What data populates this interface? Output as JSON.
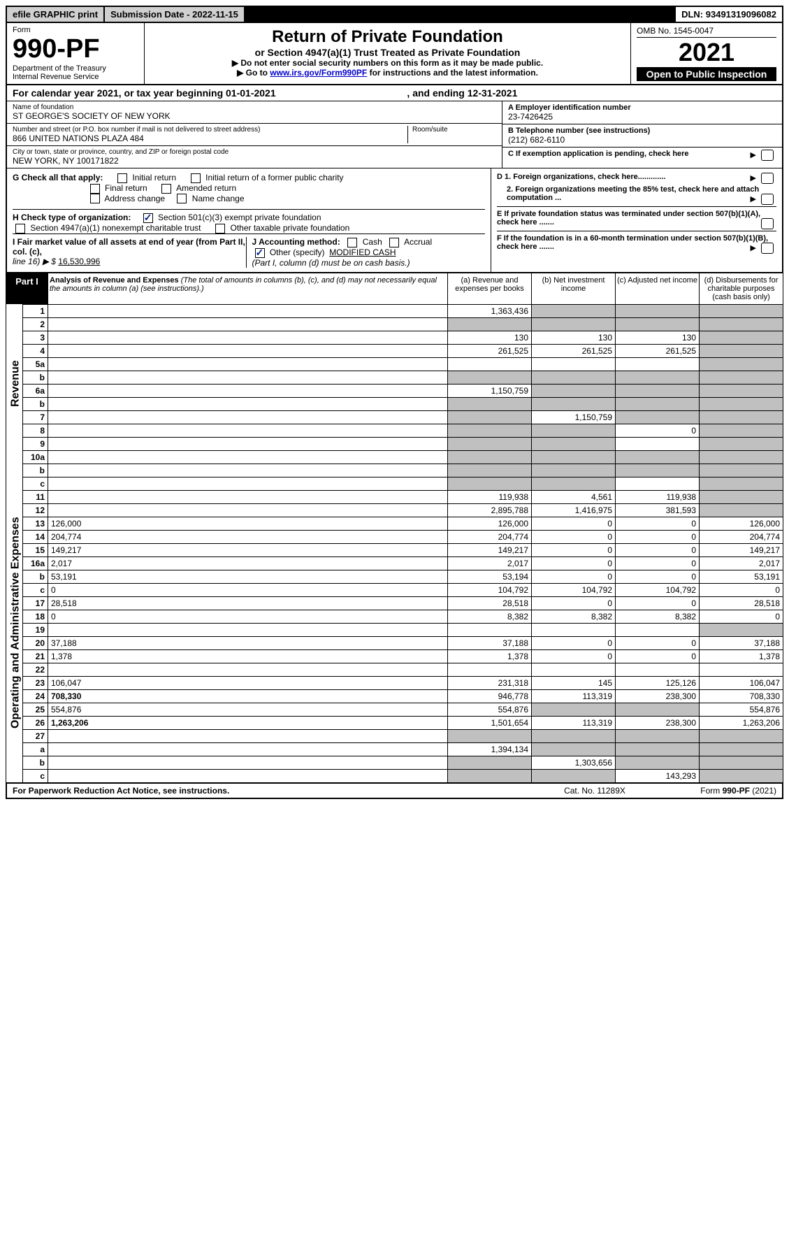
{
  "topbar": {
    "efile": "efile GRAPHIC print",
    "subdate_label": "Submission Date - ",
    "subdate_val": "2022-11-15",
    "dln_label": "DLN: ",
    "dln_val": "93491319096082"
  },
  "header": {
    "form_label": "Form",
    "form_no": "990-PF",
    "dept": "Department of the Treasury",
    "irs": "Internal Revenue Service",
    "title": "Return of Private Foundation",
    "subtitle": "or Section 4947(a)(1) Trust Treated as Private Foundation",
    "instr1": "▶ Do not enter social security numbers on this form as it may be made public.",
    "instr2_prefix": "▶ Go to ",
    "instr2_link": "www.irs.gov/Form990PF",
    "instr2_suffix": " for instructions and the latest information.",
    "omb": "OMB No. 1545-0047",
    "year": "2021",
    "open": "Open to Public Inspection"
  },
  "caly": {
    "prefix": "For calendar year 2021, or tax year beginning ",
    "begin": "01-01-2021",
    "mid": " , and ending ",
    "end": "12-31-2021"
  },
  "entity": {
    "name_label": "Name of foundation",
    "name": "ST GEORGE'S SOCIETY OF NEW YORK",
    "addr_label": "Number and street (or P.O. box number if mail is not delivered to street address)",
    "addr": "866 UNITED NATIONS PLAZA 484",
    "room_label": "Room/suite",
    "city_label": "City or town, state or province, country, and ZIP or foreign postal code",
    "city": "NEW YORK, NY  100171822",
    "ein_label": "A Employer identification number",
    "ein": "23-7426425",
    "tel_label": "B Telephone number (see instructions)",
    "tel": "(212) 682-6110",
    "c_label": "C If exemption application is pending, check here",
    "d1": "D 1. Foreign organizations, check here.............",
    "d2": "2. Foreign organizations meeting the 85% test, check here and attach computation ...",
    "e": "E  If private foundation status was terminated under section 507(b)(1)(A), check here .......",
    "f": "F  If the foundation is in a 60-month termination under section 507(b)(1)(B), check here .......",
    "g_label": "G Check all that apply:",
    "g_initial": "Initial return",
    "g_initial_pub": "Initial return of a former public charity",
    "g_final": "Final return",
    "g_amended": "Amended return",
    "g_addr": "Address change",
    "g_name": "Name change",
    "h_label": "H Check type of organization:",
    "h_501c3": "Section 501(c)(3) exempt private foundation",
    "h_4947": "Section 4947(a)(1) nonexempt charitable trust",
    "h_other": "Other taxable private foundation",
    "i_label": "I Fair market value of all assets at end of year (from Part II, col. (c),",
    "i_line": "line 16) ▶ $",
    "i_val": "16,530,996",
    "j_label": "J Accounting method:",
    "j_cash": "Cash",
    "j_accrual": "Accrual",
    "j_other": "Other (specify)",
    "j_other_val": "MODIFIED CASH",
    "j_note": "(Part I, column (d) must be on cash basis.)"
  },
  "part1": {
    "label": "Part I",
    "title": "Analysis of Revenue and Expenses",
    "title_note": "(The total of amounts in columns (b), (c), and (d) may not necessarily equal the amounts in column (a) (see instructions).)",
    "col_a": "(a)   Revenue and expenses per books",
    "col_b": "(b)   Net investment income",
    "col_c": "(c)   Adjusted net income",
    "col_d": "(d)   Disbursements for charitable purposes (cash basis only)"
  },
  "sidelabels": {
    "revenue": "Revenue",
    "expenses": "Operating and Administrative Expenses"
  },
  "rows": [
    {
      "n": "1",
      "d": "",
      "a": "1,363,436",
      "b": "",
      "c": "",
      "grey": [
        "b",
        "c",
        "d"
      ]
    },
    {
      "n": "2",
      "d": "",
      "a": "",
      "b": "",
      "c": "",
      "grey": [
        "a",
        "b",
        "c",
        "d"
      ]
    },
    {
      "n": "3",
      "d": "",
      "a": "130",
      "b": "130",
      "c": "130",
      "grey": [
        "d"
      ]
    },
    {
      "n": "4",
      "d": "",
      "a": "261,525",
      "b": "261,525",
      "c": "261,525",
      "grey": [
        "d"
      ]
    },
    {
      "n": "5a",
      "d": "",
      "a": "",
      "b": "",
      "c": "",
      "grey": [
        "d"
      ]
    },
    {
      "n": "b",
      "d": "",
      "a": "",
      "b": "",
      "c": "",
      "grey": [
        "a",
        "b",
        "c",
        "d"
      ]
    },
    {
      "n": "6a",
      "d": "",
      "a": "1,150,759",
      "b": "",
      "c": "",
      "grey": [
        "b",
        "c",
        "d"
      ]
    },
    {
      "n": "b",
      "d": "",
      "a": "",
      "b": "",
      "c": "",
      "grey": [
        "a",
        "b",
        "c",
        "d"
      ]
    },
    {
      "n": "7",
      "d": "",
      "a": "",
      "b": "1,150,759",
      "c": "",
      "grey": [
        "a",
        "c",
        "d"
      ]
    },
    {
      "n": "8",
      "d": "",
      "a": "",
      "b": "",
      "c": "0",
      "grey": [
        "a",
        "b",
        "d"
      ]
    },
    {
      "n": "9",
      "d": "",
      "a": "",
      "b": "",
      "c": "",
      "grey": [
        "a",
        "b",
        "d"
      ]
    },
    {
      "n": "10a",
      "d": "",
      "a": "",
      "b": "",
      "c": "",
      "grey": [
        "a",
        "b",
        "c",
        "d"
      ]
    },
    {
      "n": "b",
      "d": "",
      "a": "",
      "b": "",
      "c": "",
      "grey": [
        "a",
        "b",
        "c",
        "d"
      ]
    },
    {
      "n": "c",
      "d": "",
      "a": "",
      "b": "",
      "c": "",
      "grey": [
        "a",
        "b",
        "d"
      ]
    },
    {
      "n": "11",
      "d": "",
      "a": "119,938",
      "b": "4,561",
      "c": "119,938",
      "grey": [
        "d"
      ]
    },
    {
      "n": "12",
      "d": "",
      "a": "2,895,788",
      "b": "1,416,975",
      "c": "381,593",
      "grey": [
        "d"
      ],
      "bold": true
    },
    {
      "n": "13",
      "d": "126,000",
      "a": "126,000",
      "b": "0",
      "c": "0"
    },
    {
      "n": "14",
      "d": "204,774",
      "a": "204,774",
      "b": "0",
      "c": "0"
    },
    {
      "n": "15",
      "d": "149,217",
      "a": "149,217",
      "b": "0",
      "c": "0"
    },
    {
      "n": "16a",
      "d": "2,017",
      "a": "2,017",
      "b": "0",
      "c": "0"
    },
    {
      "n": "b",
      "d": "53,191",
      "a": "53,194",
      "b": "0",
      "c": "0"
    },
    {
      "n": "c",
      "d": "0",
      "a": "104,792",
      "b": "104,792",
      "c": "104,792"
    },
    {
      "n": "17",
      "d": "28,518",
      "a": "28,518",
      "b": "0",
      "c": "0"
    },
    {
      "n": "18",
      "d": "0",
      "a": "8,382",
      "b": "8,382",
      "c": "8,382"
    },
    {
      "n": "19",
      "d": "",
      "a": "",
      "b": "",
      "c": "",
      "grey": [
        "d"
      ]
    },
    {
      "n": "20",
      "d": "37,188",
      "a": "37,188",
      "b": "0",
      "c": "0"
    },
    {
      "n": "21",
      "d": "1,378",
      "a": "1,378",
      "b": "0",
      "c": "0"
    },
    {
      "n": "22",
      "d": "",
      "a": "",
      "b": "",
      "c": ""
    },
    {
      "n": "23",
      "d": "106,047",
      "a": "231,318",
      "b": "145",
      "c": "125,126"
    },
    {
      "n": "24",
      "d": "708,330",
      "a": "946,778",
      "b": "113,319",
      "c": "238,300",
      "bold": true
    },
    {
      "n": "25",
      "d": "554,876",
      "a": "554,876",
      "b": "",
      "c": "",
      "grey": [
        "b",
        "c"
      ]
    },
    {
      "n": "26",
      "d": "1,263,206",
      "a": "1,501,654",
      "b": "113,319",
      "c": "238,300",
      "bold": true
    },
    {
      "n": "27",
      "d": "",
      "a": "",
      "b": "",
      "c": "",
      "grey": [
        "a",
        "b",
        "c",
        "d"
      ]
    },
    {
      "n": "a",
      "d": "",
      "a": "1,394,134",
      "b": "",
      "c": "",
      "grey": [
        "b",
        "c",
        "d"
      ],
      "bold": true
    },
    {
      "n": "b",
      "d": "",
      "a": "",
      "b": "1,303,656",
      "c": "",
      "grey": [
        "a",
        "c",
        "d"
      ],
      "bold": true
    },
    {
      "n": "c",
      "d": "",
      "a": "",
      "b": "",
      "c": "143,293",
      "grey": [
        "a",
        "b",
        "d"
      ],
      "bold": true
    }
  ],
  "footer": {
    "left": "For Paperwork Reduction Act Notice, see instructions.",
    "center": "Cat. No. 11289X",
    "right": "Form 990-PF (2021)"
  }
}
